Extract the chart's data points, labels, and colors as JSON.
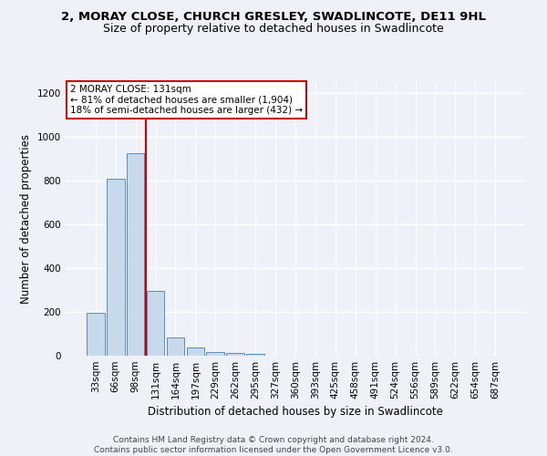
{
  "title": "2, MORAY CLOSE, CHURCH GRESLEY, SWADLINCOTE, DE11 9HL",
  "subtitle": "Size of property relative to detached houses in Swadlincote",
  "xlabel": "Distribution of detached houses by size in Swadlincote",
  "ylabel": "Number of detached properties",
  "bar_labels": [
    "33sqm",
    "66sqm",
    "98sqm",
    "131sqm",
    "164sqm",
    "197sqm",
    "229sqm",
    "262sqm",
    "295sqm",
    "327sqm",
    "360sqm",
    "393sqm",
    "425sqm",
    "458sqm",
    "491sqm",
    "524sqm",
    "556sqm",
    "589sqm",
    "622sqm",
    "654sqm",
    "687sqm"
  ],
  "bar_values": [
    195,
    810,
    925,
    295,
    85,
    38,
    18,
    12,
    8,
    0,
    0,
    0,
    0,
    0,
    0,
    0,
    0,
    0,
    0,
    0,
    0
  ],
  "bar_color": "#c8d9eb",
  "bar_edge_color": "#5b8db8",
  "vline_color": "#cc0000",
  "annotation_text": "2 MORAY CLOSE: 131sqm\n← 81% of detached houses are smaller (1,904)\n18% of semi-detached houses are larger (432) →",
  "annotation_box_color": "#ffffff",
  "annotation_box_edge": "#cc0000",
  "ylim": [
    0,
    1250
  ],
  "yticks": [
    0,
    200,
    400,
    600,
    800,
    1000,
    1200
  ],
  "footer_text": "Contains HM Land Registry data © Crown copyright and database right 2024.\nContains public sector information licensed under the Open Government Licence v3.0.",
  "background_color": "#eef2f8",
  "grid_color": "#ffffff",
  "title_fontsize": 9.5,
  "subtitle_fontsize": 9,
  "axis_label_fontsize": 8.5,
  "tick_fontsize": 7.5,
  "footer_fontsize": 6.5,
  "annotation_fontsize": 7.5
}
